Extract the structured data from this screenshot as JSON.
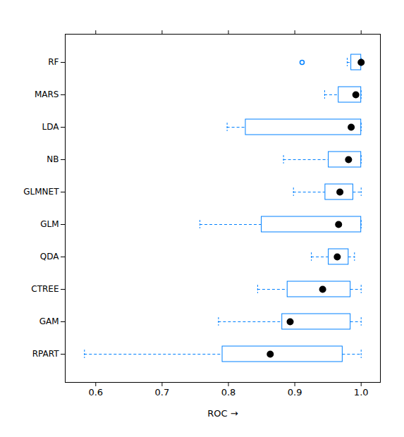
{
  "chart_data": {
    "type": "box",
    "orientation": "horizontal",
    "x_label": "ROC",
    "color": "#0080ff",
    "categories": [
      "RF",
      "MARS",
      "LDA",
      "NB",
      "GLMNET",
      "GLM",
      "QDA",
      "CTREE",
      "GAM",
      "RPART"
    ],
    "whisker_low": [
      0.979,
      0.945,
      0.798,
      0.883,
      0.898,
      0.757,
      0.925,
      0.844,
      0.785,
      0.583
    ],
    "q1": [
      0.985,
      0.966,
      0.826,
      0.951,
      0.946,
      0.85,
      0.951,
      0.889,
      0.881,
      0.791
    ],
    "median": [
      1.0,
      0.992,
      0.985,
      0.981,
      0.968,
      0.966,
      0.964,
      0.942,
      0.893,
      0.863
    ],
    "q3": [
      1.0,
      1.0,
      1.0,
      1.0,
      0.988,
      1.0,
      0.981,
      0.984,
      0.984,
      0.972
    ],
    "whisker_high": [
      1.0,
      1.0,
      1.0,
      1.0,
      1.0,
      1.0,
      0.99,
      1.0,
      1.0,
      1.0
    ],
    "outliers": [
      [
        0.911
      ],
      [],
      [],
      [],
      [],
      [],
      [],
      [],
      [],
      []
    ],
    "xlim": [
      0.554,
      1.029
    ],
    "xticks": [
      0.6,
      0.7,
      0.8,
      0.9,
      {
        "value": 1,
        "label": "1.0"
      }
    ]
  }
}
